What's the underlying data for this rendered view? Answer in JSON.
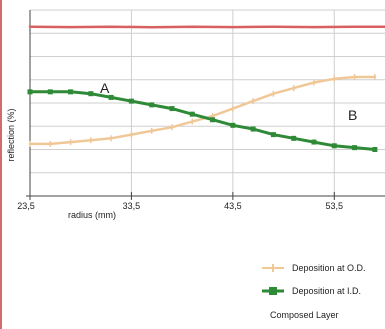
{
  "chart_data": {
    "type": "line",
    "xlabel": "radius (mm)",
    "ylabel": "reflection (%)",
    "xlim": [
      23.5,
      58.5
    ],
    "ylim": [
      0,
      100
    ],
    "x_ticks": [
      "23,5",
      "33,5",
      "43,5",
      "53,5"
    ],
    "x_tick_values": [
      23.5,
      33.5,
      43.5,
      53.5
    ],
    "grid": true,
    "annotations": [
      {
        "text": "A",
        "x": 29.0,
        "y": 61
      },
      {
        "text": "B",
        "x": 55.0,
        "y": 45
      }
    ],
    "series": [
      {
        "name": "Deposition at O.D.",
        "color": "#f0c898",
        "marker": "+",
        "x": [
          23.5,
          25.5,
          27.5,
          29.5,
          31.5,
          33.5,
          35.5,
          37.5,
          39.5,
          41.5,
          43.5,
          45.5,
          47.5,
          49.5,
          51.5,
          53.5,
          55.5,
          57.5
        ],
        "y": [
          28,
          28,
          29,
          30,
          31,
          33,
          35,
          37,
          40,
          43,
          47,
          51,
          55,
          58,
          61,
          63,
          64,
          64
        ]
      },
      {
        "name": "Deposition at I.D.",
        "color": "#2e8a36",
        "marker": "+",
        "x": [
          23.5,
          25.5,
          27.5,
          29.5,
          31.5,
          33.5,
          35.5,
          37.5,
          39.5,
          41.5,
          43.5,
          45.5,
          47.5,
          49.5,
          51.5,
          53.5,
          55.5,
          57.5
        ],
        "y": [
          56,
          56,
          56,
          55,
          53,
          51,
          49,
          47,
          44,
          41,
          38,
          36,
          33,
          31,
          29,
          27,
          26,
          25
        ]
      },
      {
        "name": "Composed Layer",
        "color": "#d96060",
        "marker": "none",
        "x": [
          23.5,
          27.5,
          31.5,
          35.5,
          39.5,
          43.5,
          47.5,
          51.5,
          55.5,
          58.5
        ],
        "y": [
          91,
          90.8,
          91,
          90.7,
          91,
          90.8,
          91,
          90.8,
          91,
          91
        ]
      }
    ],
    "legend_position": "bottom-right"
  }
}
